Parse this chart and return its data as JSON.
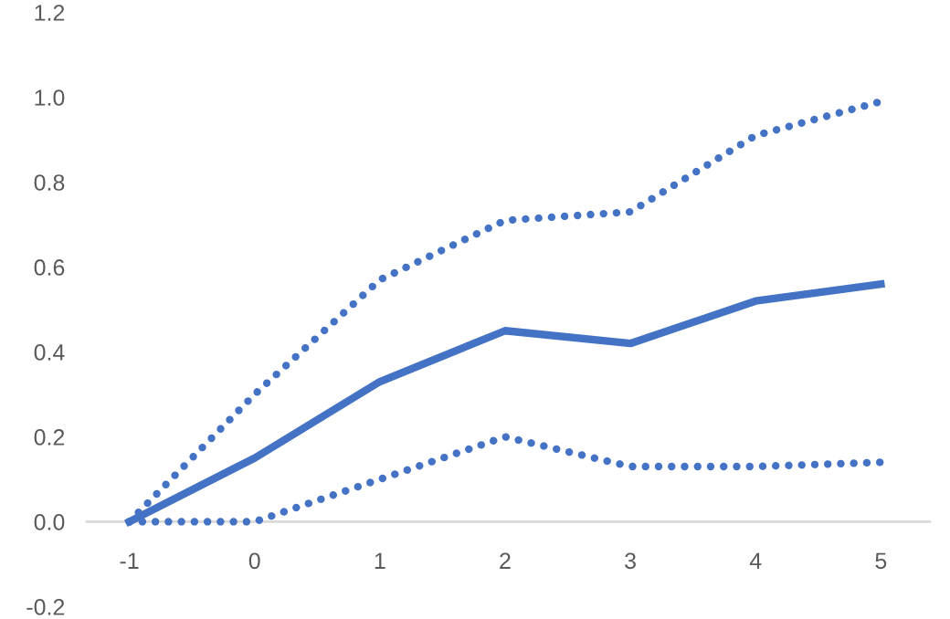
{
  "chart_data": {
    "type": "line",
    "categories": [
      "-1",
      "0",
      "1",
      "2",
      "3",
      "4",
      "5"
    ],
    "series": [
      {
        "color": "#4472c4",
        "line_style": "solid",
        "values": [
          0,
          0.15,
          0.33,
          0.45,
          0.42,
          0.52,
          0.56
        ]
      },
      {
        "color": "#4472c4",
        "line_style": "dotted",
        "values": [
          0,
          0.3,
          0.57,
          0.71,
          0.73,
          0.91,
          0.99
        ]
      },
      {
        "color": "#4472c4",
        "line_style": "dotted",
        "values": [
          0,
          0.0,
          0.1,
          0.2,
          0.13,
          0.13,
          0.14
        ]
      }
    ],
    "ylim": [
      -0.2,
      1.2
    ],
    "yticks": [
      {
        "value": -0.2,
        "label": "-0.2"
      },
      {
        "value": 0,
        "label": "0.0"
      },
      {
        "value": 0.2,
        "label": "0.2"
      },
      {
        "value": 0.4,
        "label": "0.4"
      },
      {
        "value": 0.6,
        "label": "0.6"
      },
      {
        "value": 0.8,
        "label": "0.8"
      },
      {
        "value": 1.0,
        "label": "1.0"
      },
      {
        "value": 1.2,
        "label": "1.2"
      }
    ],
    "grid": false,
    "marker": "none"
  }
}
